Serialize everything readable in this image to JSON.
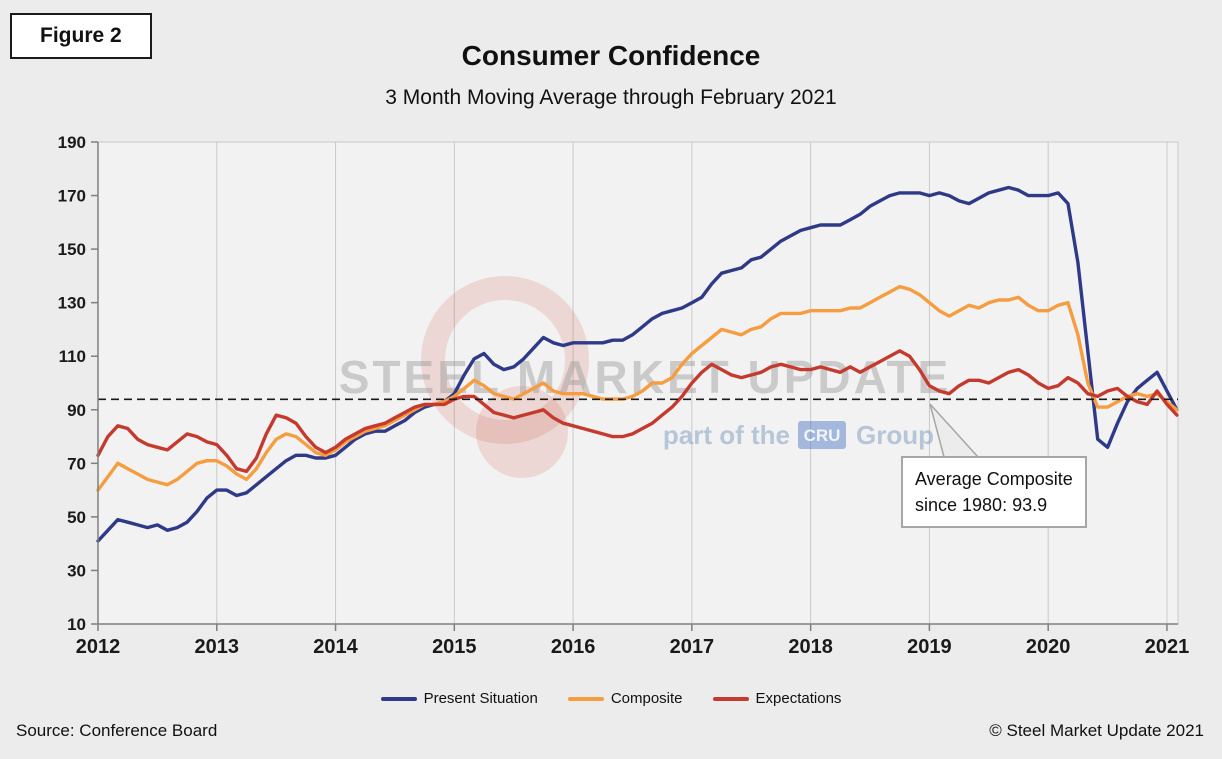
{
  "figure_label": "Figure 2",
  "annotation": {
    "line1": "Average Composite",
    "line2": "since 1980: 93.9"
  },
  "footer": {
    "source": "Source: Conference Board",
    "copyright": "© Steel Market Update 2021"
  },
  "watermark": {
    "main": "STEEL MARKET UPDATE",
    "sub_prefix": "part of the",
    "logo": "CRU",
    "sub_suffix": "Group"
  },
  "colors": {
    "present_situation": "#2e3a87",
    "composite": "#f59d40",
    "expectations": "#c43a2e",
    "average_line": "#1a1a1a",
    "grid": "#c9c9c9",
    "axis": "#7f7f7f",
    "plot_bg": "#f3f2f2",
    "page_bg": "#edecec"
  },
  "chart_data": {
    "type": "line",
    "title": "Consumer Confidence",
    "subtitle": "3 Month Moving Average through February 2021",
    "xlabel": "",
    "ylabel": "",
    "x_start_year": 2012,
    "x_interval": "monthly",
    "x_end_label": "February 2021",
    "xlim": [
      2012,
      2021.093
    ],
    "ylim": [
      10,
      190
    ],
    "xticks": [
      2012,
      2013,
      2014,
      2015,
      2016,
      2017,
      2018,
      2019,
      2020,
      2021
    ],
    "yticks": [
      10,
      30,
      50,
      70,
      90,
      110,
      130,
      150,
      170,
      190
    ],
    "grid": "vertical-only",
    "legend_position": "bottom",
    "average_line": {
      "label": "Average Composite since 1980",
      "value": 93.9
    },
    "series": [
      {
        "name": "Present Situation",
        "color": "#2e3a87",
        "values": [
          41,
          45,
          49,
          48,
          47,
          46,
          47,
          45,
          46,
          48,
          52,
          57,
          60,
          60,
          58,
          59,
          62,
          65,
          68,
          71,
          73,
          73,
          72,
          72,
          73,
          76,
          79,
          81,
          82,
          82,
          84,
          86,
          89,
          91,
          92,
          93,
          96,
          103,
          109,
          111,
          107,
          105,
          106,
          109,
          113,
          117,
          115,
          114,
          115,
          115,
          115,
          115,
          116,
          116,
          118,
          121,
          124,
          126,
          127,
          128,
          130,
          132,
          137,
          141,
          142,
          143,
          146,
          147,
          150,
          153,
          155,
          157,
          158,
          159,
          159,
          159,
          161,
          163,
          166,
          168,
          170,
          171,
          171,
          171,
          170,
          171,
          170,
          168,
          167,
          169,
          171,
          172,
          173,
          172,
          170,
          170,
          170,
          171,
          167,
          145,
          112,
          79,
          76,
          85,
          93,
          98,
          101,
          104,
          97,
          90
        ]
      },
      {
        "name": "Composite",
        "color": "#f59d40",
        "values": [
          60,
          65,
          70,
          68,
          66,
          64,
          63,
          62,
          64,
          67,
          70,
          71,
          71,
          69,
          66,
          64,
          68,
          74,
          79,
          81,
          80,
          77,
          74,
          73,
          75,
          78,
          80,
          82,
          83,
          84,
          86,
          88,
          90,
          92,
          92,
          93,
          95,
          98,
          101,
          99,
          96,
          95,
          94,
          96,
          98,
          100,
          97,
          96,
          96,
          96,
          95,
          94,
          94,
          94,
          95,
          97,
          100,
          100,
          102,
          107,
          111,
          114,
          117,
          120,
          119,
          118,
          120,
          121,
          124,
          126,
          126,
          126,
          127,
          127,
          127,
          127,
          128,
          128,
          130,
          132,
          134,
          136,
          135,
          133,
          130,
          127,
          125,
          127,
          129,
          128,
          130,
          131,
          131,
          132,
          129,
          127,
          127,
          129,
          130,
          118,
          100,
          91,
          91,
          93,
          95,
          96,
          95,
          96,
          93,
          90
        ]
      },
      {
        "name": "Expectations",
        "color": "#c43a2e",
        "values": [
          73,
          80,
          84,
          83,
          79,
          77,
          76,
          75,
          78,
          81,
          80,
          78,
          77,
          73,
          68,
          67,
          72,
          81,
          88,
          87,
          85,
          80,
          76,
          74,
          76,
          79,
          81,
          83,
          84,
          85,
          87,
          89,
          91,
          92,
          92,
          92,
          94,
          95,
          95,
          92,
          89,
          88,
          87,
          88,
          89,
          90,
          87,
          85,
          84,
          83,
          82,
          81,
          80,
          80,
          81,
          83,
          85,
          88,
          91,
          95,
          100,
          104,
          107,
          105,
          103,
          102,
          103,
          104,
          106,
          107,
          106,
          105,
          105,
          106,
          105,
          104,
          106,
          104,
          106,
          108,
          110,
          112,
          110,
          105,
          99,
          97,
          96,
          99,
          101,
          101,
          100,
          102,
          104,
          105,
          103,
          100,
          98,
          99,
          102,
          100,
          96,
          95,
          97,
          98,
          95,
          93,
          92,
          97,
          92,
          88
        ]
      }
    ]
  }
}
